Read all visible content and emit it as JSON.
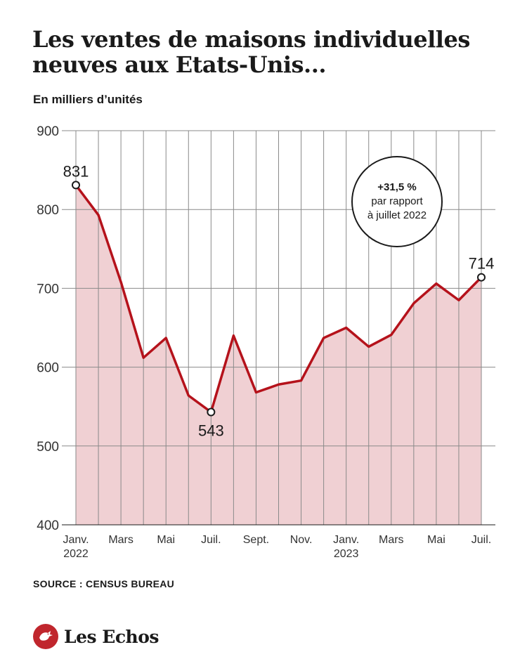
{
  "header": {
    "title": "Les ventes de maisons individuelles neuves aux Etats-Unis...",
    "subtitle": "En milliers d’unités"
  },
  "footer": {
    "source": "SOURCE : CENSUS BUREAU",
    "brand": "Les Echos"
  },
  "callout": {
    "value": "+31,5 %",
    "line1": "par rapport",
    "line2": "à juillet 2022"
  },
  "colors": {
    "line": "#b5121b",
    "area": "#f0d0d3",
    "grid": "#8a8a8a",
    "brand": "#c0262d"
  },
  "chart_data": {
    "type": "area",
    "title": "Les ventes de maisons individuelles neuves aux Etats-Unis...",
    "ylabel": "En milliers d’unités",
    "xlabel": "",
    "ylim": [
      400,
      900
    ],
    "yticks": [
      400,
      500,
      600,
      700,
      800,
      900
    ],
    "grid": true,
    "x": [
      "2022-01",
      "2022-02",
      "2022-03",
      "2022-04",
      "2022-05",
      "2022-06",
      "2022-07",
      "2022-08",
      "2022-09",
      "2022-10",
      "2022-11",
      "2022-12",
      "2023-01",
      "2023-02",
      "2023-03",
      "2023-04",
      "2023-05",
      "2023-06",
      "2023-07"
    ],
    "xtick_labels": [
      {
        "index": 0,
        "line1": "Janv.",
        "line2": "2022"
      },
      {
        "index": 2,
        "line1": "Mars",
        "line2": ""
      },
      {
        "index": 4,
        "line1": "Mai",
        "line2": ""
      },
      {
        "index": 6,
        "line1": "Juil.",
        "line2": ""
      },
      {
        "index": 8,
        "line1": "Sept.",
        "line2": ""
      },
      {
        "index": 10,
        "line1": "Nov.",
        "line2": ""
      },
      {
        "index": 12,
        "line1": "Janv.",
        "line2": "2023"
      },
      {
        "index": 14,
        "line1": "Mars",
        "line2": ""
      },
      {
        "index": 16,
        "line1": "Mai",
        "line2": ""
      },
      {
        "index": 18,
        "line1": "Juil.",
        "line2": ""
      }
    ],
    "series": [
      {
        "values": [
          831,
          793,
          708,
          612,
          637,
          564,
          543,
          640,
          568,
          578,
          583,
          637,
          650,
          626,
          641,
          681,
          706,
          685,
          714
        ]
      }
    ],
    "annotations": [
      {
        "index": 0,
        "label": "831",
        "position": "above"
      },
      {
        "index": 6,
        "label": "543",
        "position": "below"
      },
      {
        "index": 18,
        "label": "714",
        "position": "above"
      }
    ]
  }
}
